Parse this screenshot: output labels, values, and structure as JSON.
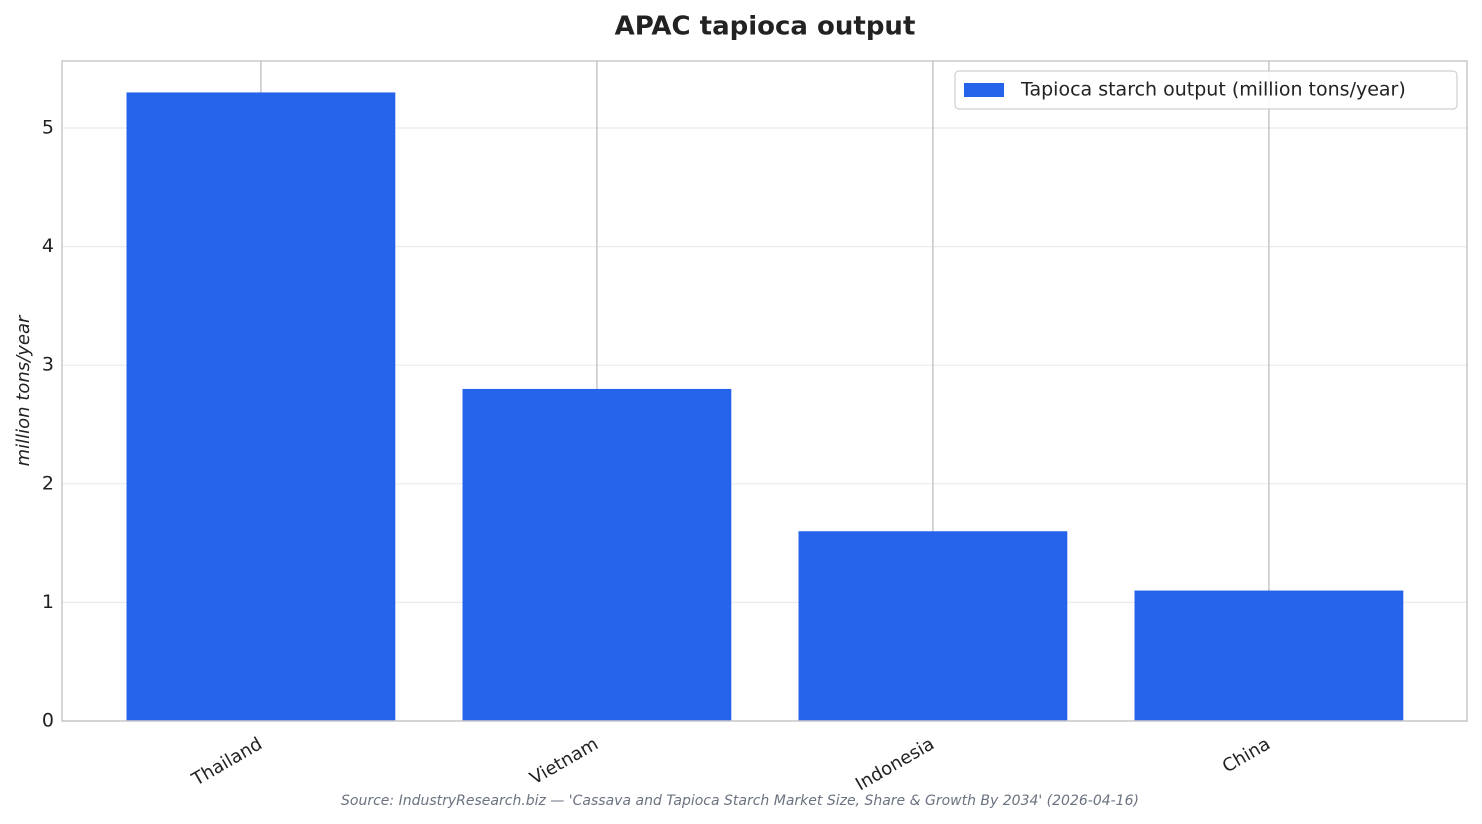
{
  "chart_data": {
    "type": "bar",
    "title": "APAC tapioca output",
    "y_label": "million tons/year",
    "categories": [
      "Thailand",
      "Vietnam",
      "Indonesia",
      "China"
    ],
    "series": [
      {
        "name": "Tapioca starch output (million tons/year)",
        "color": "#2563eb",
        "values": [
          5.3,
          2.8,
          1.6,
          1.1
        ]
      }
    ],
    "ylim": [
      0,
      5.565
    ],
    "yticks": [
      0,
      1,
      2,
      3,
      4,
      5
    ],
    "grid": true,
    "legend": "upper right",
    "source": "Source: IndustryResearch.biz — 'Cassava and Tapioca Starch Market Size, Share & Growth By 2034' (2026-04-16)"
  }
}
